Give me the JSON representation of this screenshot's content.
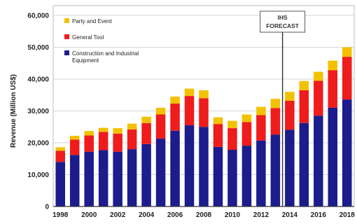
{
  "chart_data": {
    "type": "bar",
    "stacked": true,
    "ylabel": "Revenue (Million US$)",
    "xlabel": "",
    "ylim": [
      0,
      60000
    ],
    "yticks": [
      0,
      10000,
      20000,
      30000,
      40000,
      50000,
      60000
    ],
    "ytick_labels": [
      "0",
      "10,000",
      "20,000",
      "30,000",
      "40,000",
      "50,000",
      "60,000"
    ],
    "categories": [
      "1998",
      "1999",
      "2000",
      "2001",
      "2002",
      "2003",
      "2004",
      "2005",
      "2006",
      "2007",
      "2008",
      "2009",
      "2010",
      "2011",
      "2012",
      "2013",
      "2014",
      "2015",
      "2016",
      "2017",
      "2018"
    ],
    "xtick_labels": [
      "1998",
      "",
      "2000",
      "",
      "2002",
      "",
      "2004",
      "",
      "2006",
      "",
      "2008",
      "",
      "2010",
      "",
      "2012",
      "",
      "2014",
      "",
      "2016",
      "",
      "2018"
    ],
    "series": [
      {
        "name": "Construction and Industrial Equipment",
        "color": "#1c1c8c",
        "values": [
          14000,
          16200,
          17200,
          17700,
          17200,
          18000,
          19600,
          21300,
          23800,
          25500,
          25000,
          18700,
          17800,
          19100,
          20700,
          22600,
          24100,
          26200,
          28500,
          31000,
          33600
        ]
      },
      {
        "name": "General Tool",
        "color": "#ee1c1c",
        "values": [
          3500,
          4800,
          5100,
          5700,
          5700,
          6200,
          6600,
          7600,
          8500,
          9200,
          9000,
          7200,
          6800,
          7400,
          8000,
          8300,
          9100,
          10300,
          11000,
          11800,
          13400
        ]
      },
      {
        "name": "Party and Event",
        "color": "#f2c200",
        "values": [
          1100,
          1200,
          1400,
          1300,
          1700,
          1800,
          2000,
          2100,
          2200,
          2300,
          2500,
          2100,
          2300,
          2400,
          2600,
          2900,
          2800,
          2900,
          2800,
          3000,
          3000
        ]
      }
    ],
    "annotations": [
      {
        "text": "IHS FORECAST",
        "line1": "IHS",
        "line2": "FORECAST",
        "at_category_between": [
          "2013",
          "2014"
        ]
      }
    ],
    "legend": {
      "placement": "top-left",
      "order": [
        "Party and Event",
        "General Tool",
        "Construction and Industrial Equipment"
      ],
      "lines": [
        [
          "Party and Event"
        ],
        [
          "General Tool"
        ],
        [
          "Construction and Industrial",
          "Equipment"
        ]
      ]
    },
    "grid": true
  }
}
